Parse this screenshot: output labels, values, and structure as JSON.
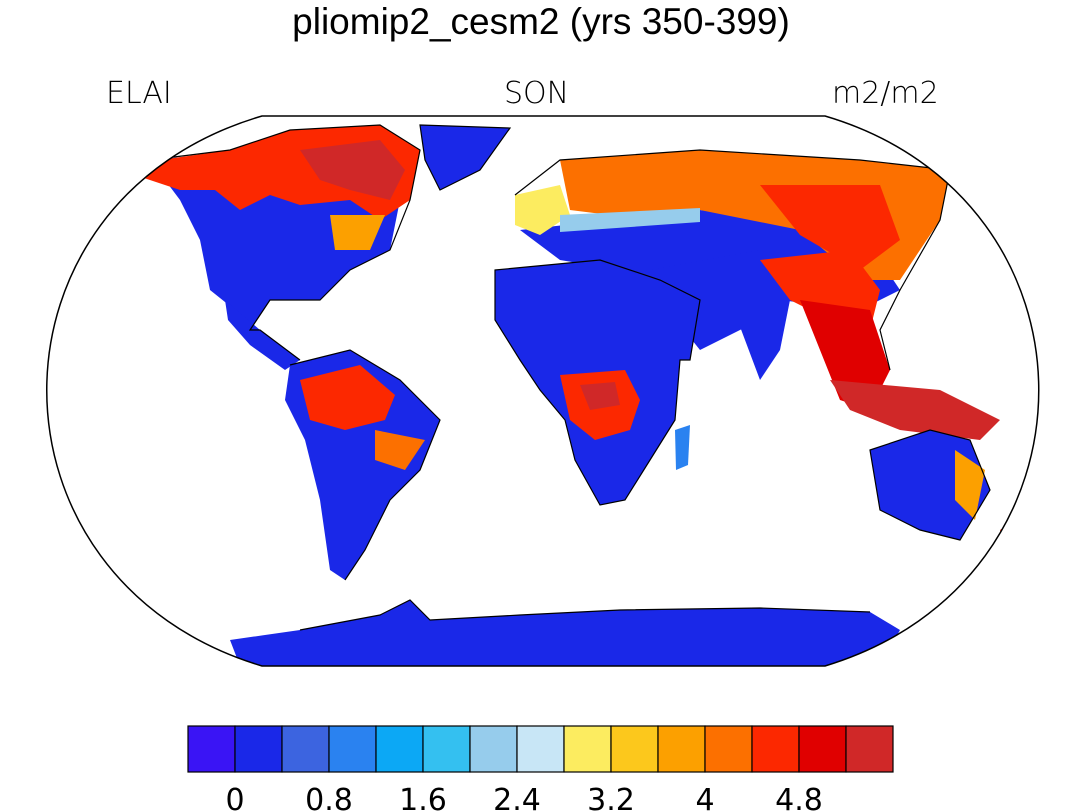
{
  "title": "pliomip2_cesm2 (yrs 350-399)",
  "left_label": "ELAI",
  "center_label": "SON",
  "right_label": "m2/m2",
  "colorbar": {
    "colors": [
      "#3a14f5",
      "#1a28e8",
      "#3c64e0",
      "#2a82f0",
      "#0ca8f5",
      "#34c0f0",
      "#96ccec",
      "#c8e6f6",
      "#fcec60",
      "#fcc81c",
      "#fca000",
      "#fc7000",
      "#fc2800",
      "#e00000",
      "#d02828"
    ],
    "tick_labels": [
      "0",
      "0.8",
      "1.6",
      "2.4",
      "3.2",
      "4",
      "4.8"
    ]
  },
  "map": {
    "projection": "robinson",
    "ocean_color": "#ffffff",
    "coastline_color": "#000000"
  }
}
